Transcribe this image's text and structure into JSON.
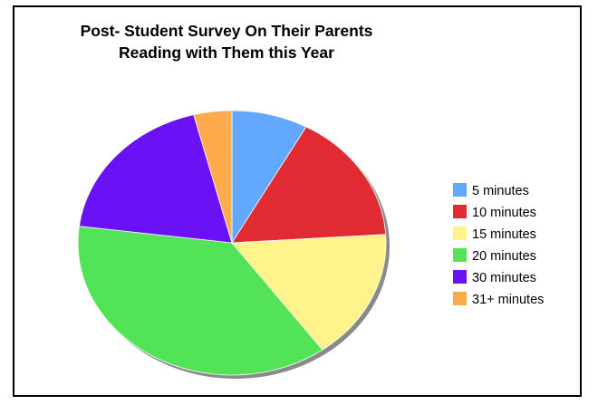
{
  "chart_data": {
    "type": "pie",
    "title_lines": [
      "Post- Student Survey On Their Parents",
      "Reading with Them this Year"
    ],
    "categories": [
      "5 minutes",
      "10 minutes",
      "15 minutes",
      "20 minutes",
      "30 minutes",
      "31+ minutes"
    ],
    "values": [
      8,
      16,
      16,
      37,
      19,
      4
    ],
    "colors": [
      "#62a8ff",
      "#e02b33",
      "#fff48c",
      "#52e356",
      "#6a12f5",
      "#ffaa4c"
    ],
    "legend_position": "right",
    "start_angle_deg": 0,
    "direction": "clockwise"
  }
}
